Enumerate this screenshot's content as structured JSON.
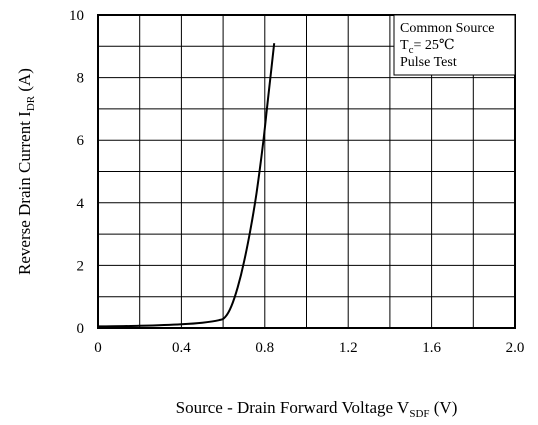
{
  "chart_data": {
    "type": "line",
    "title": "",
    "xlabel": {
      "main": "Source - Drain Forward Voltage  V",
      "sub": "SDF",
      "unit": " (V)"
    },
    "ylabel": {
      "main": "Reverse Drain Current  I",
      "sub": "DR",
      "unit": " (A)"
    },
    "xlim": [
      0,
      2.0
    ],
    "ylim": [
      0,
      10
    ],
    "x_ticks": [
      "0",
      "0.4",
      "0.8",
      "1.2",
      "1.6",
      "2.0"
    ],
    "y_ticks": [
      "0",
      "2",
      "4",
      "6",
      "8",
      "10"
    ],
    "grid": true,
    "grid_x_step": 0.2,
    "grid_y_step": 1,
    "legend": {
      "placement": "top-right",
      "line1": "Common Source",
      "line2_main": "T",
      "line2_sub": "c",
      "line2_rest": "= 25℃",
      "line3": "Pulse Test"
    },
    "series": [
      {
        "color": "#000000",
        "points": [
          [
            0.0,
            0.05
          ],
          [
            0.2,
            0.07
          ],
          [
            0.4,
            0.12
          ],
          [
            0.5,
            0.17
          ],
          [
            0.58,
            0.25
          ],
          [
            0.61,
            0.35
          ],
          [
            0.64,
            0.7
          ],
          [
            0.67,
            1.3
          ],
          [
            0.7,
            2.1
          ],
          [
            0.73,
            3.1
          ],
          [
            0.76,
            4.3
          ],
          [
            0.79,
            5.8
          ],
          [
            0.81,
            7.0
          ],
          [
            0.83,
            8.2
          ],
          [
            0.845,
            9.1
          ]
        ]
      }
    ]
  }
}
